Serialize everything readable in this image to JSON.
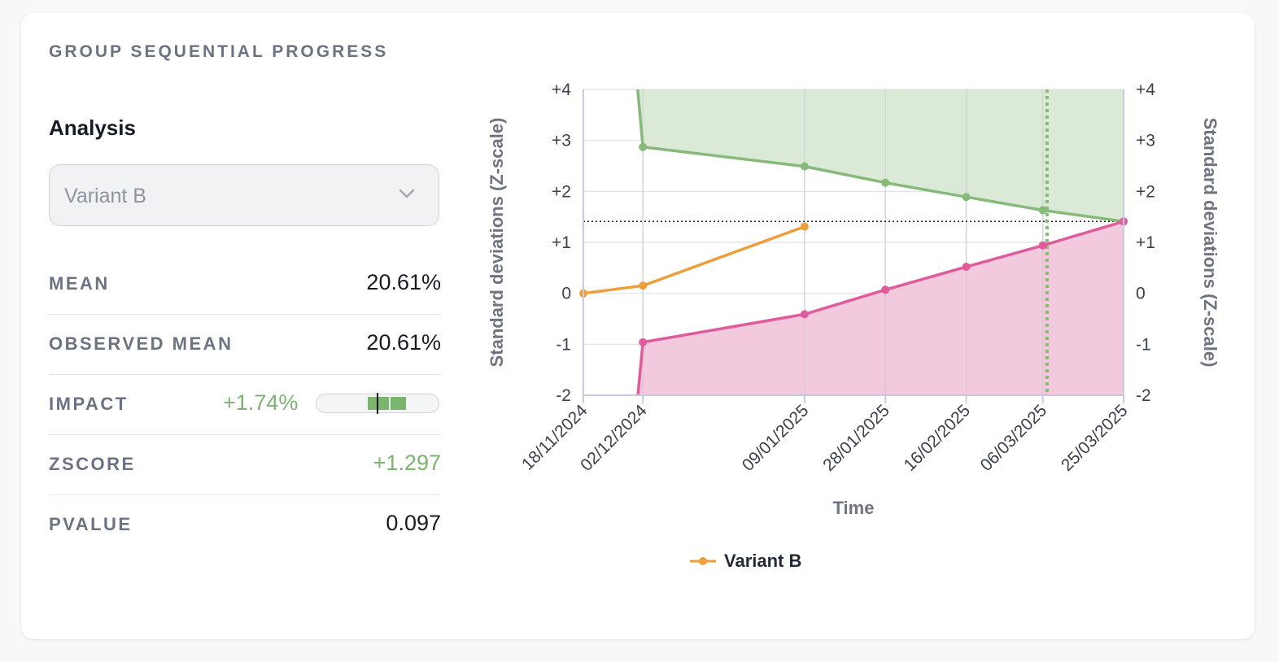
{
  "panel": {
    "title": "GROUP SEQUENTIAL PROGRESS"
  },
  "analysis": {
    "label": "Analysis",
    "selected_variant": "Variant B",
    "select_icon": "chevron-down-icon"
  },
  "stats": {
    "mean": {
      "label": "MEAN",
      "value": "20.61%"
    },
    "observed_mean": {
      "label": "OBSERVED MEAN",
      "value": "20.61%"
    },
    "impact": {
      "label": "IMPACT",
      "value": "+1.74%",
      "bar_center_fraction": 0.5,
      "bar_low_fraction": 0.42,
      "bar_high_fraction": 0.74
    },
    "zscore": {
      "label": "ZSCORE",
      "value": "+1.297"
    },
    "pvalue": {
      "label": "PVALUE",
      "value": "0.097"
    }
  },
  "colors": {
    "upper_boundary": "#86b97a",
    "upper_fill": "#dbead7",
    "lower_boundary": "#df5b9c",
    "lower_fill": "#f3c9dd",
    "variant": "#ec9f3a",
    "positive_text": "#7cb370"
  },
  "chart_data": {
    "type": "line",
    "xlabel": "Time",
    "ylabel": "Standard deviations (Z-scale)",
    "ylabel_right": "Standard deviations (Z-scale)",
    "ylim": [
      -2,
      4
    ],
    "y_ticks": [
      "-2",
      "-1",
      "0",
      "+1",
      "+2",
      "+3",
      "+4"
    ],
    "x_ticks": [
      "18/11/2024",
      "02/12/2024",
      "09/01/2025",
      "28/01/2025",
      "16/02/2025",
      "06/03/2025",
      "25/03/2025"
    ],
    "x_start": "2024-11-18",
    "x_end": "2025-03-25",
    "grid": true,
    "legend_position": "bottom",
    "critical_line_z": 1.41,
    "current_date_marker": "2025-03-07",
    "series": [
      {
        "name": "Variant B",
        "points": [
          {
            "x": "2024-11-18",
            "y": 0.0
          },
          {
            "x": "2024-12-02",
            "y": 0.15
          },
          {
            "x": "2025-01-09",
            "y": 1.31
          }
        ]
      }
    ],
    "upper_boundary": [
      {
        "x": "2024-12-02",
        "y": 2.87
      },
      {
        "x": "2025-01-09",
        "y": 2.49
      },
      {
        "x": "2025-01-28",
        "y": 2.17
      },
      {
        "x": "2025-02-16",
        "y": 1.89
      },
      {
        "x": "2025-03-06",
        "y": 1.63
      },
      {
        "x": "2025-03-25",
        "y": 1.41
      }
    ],
    "lower_boundary": [
      {
        "x": "2024-12-02",
        "y": -0.96
      },
      {
        "x": "2025-01-09",
        "y": -0.41
      },
      {
        "x": "2025-01-28",
        "y": 0.07
      },
      {
        "x": "2025-02-16",
        "y": 0.52
      },
      {
        "x": "2025-03-06",
        "y": 0.94
      },
      {
        "x": "2025-03-25",
        "y": 1.41
      }
    ]
  }
}
